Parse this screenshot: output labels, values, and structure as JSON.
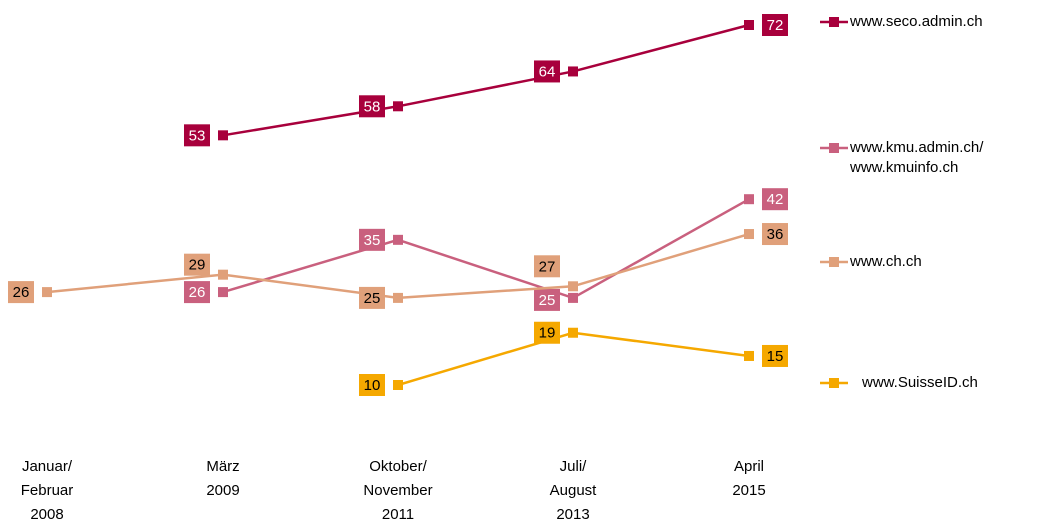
{
  "chart_data": {
    "type": "line",
    "categories": [
      "Januar/\nFebruar\n2008",
      "März\n2009",
      "Oktober/\nNovember\n2011",
      "Juli/\nAugust\n2013",
      "April\n2015"
    ],
    "series": [
      {
        "name": "www.seco.admin.ch",
        "color": "#a8003c",
        "label_color": "#ffffff",
        "values": [
          null,
          53,
          58,
          64,
          72
        ]
      },
      {
        "name": "www.kmu.admin.ch/\nwww.kmuinfo.ch",
        "color": "#c9607e",
        "label_color": "#ffffff",
        "values": [
          null,
          26,
          35,
          25,
          42
        ]
      },
      {
        "name": "www.ch.ch",
        "color": "#e0a07a",
        "label_color": "#000000",
        "values": [
          26,
          29,
          25,
          27,
          36
        ]
      },
      {
        "name": "www.SuisseID.ch",
        "color": "#f5a800",
        "label_color": "#000000",
        "values": [
          null,
          null,
          10,
          19,
          15
        ]
      }
    ]
  }
}
